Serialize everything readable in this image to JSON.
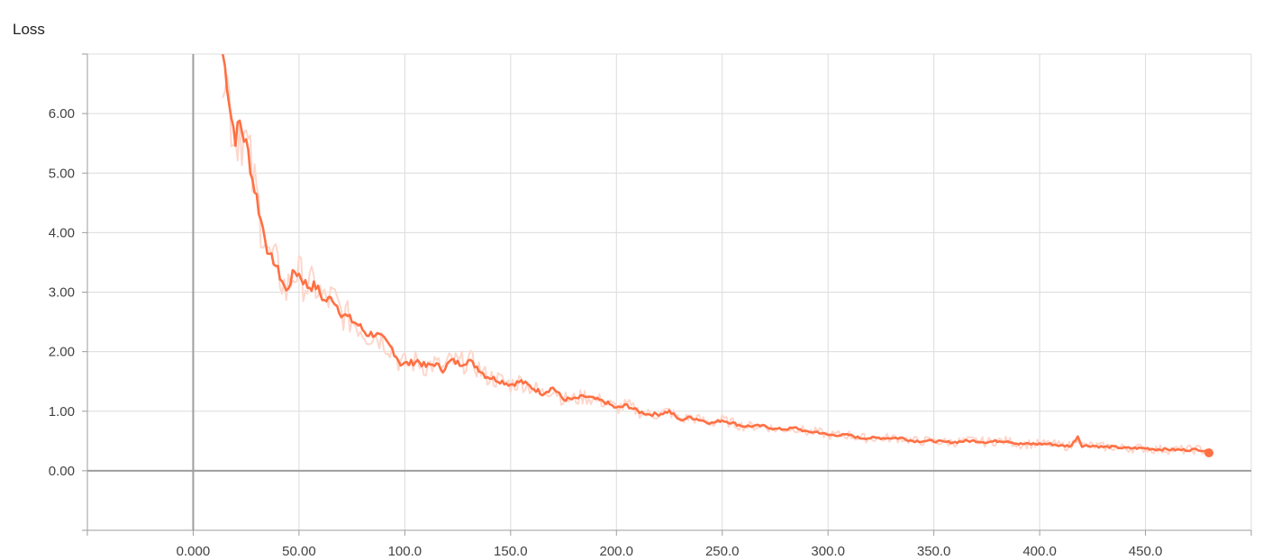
{
  "chart_data": {
    "type": "line",
    "title": "Loss",
    "xlabel": "",
    "ylabel": "",
    "xlim": [
      -50,
      500
    ],
    "ylim": [
      -1,
      7
    ],
    "grid": true,
    "x_ticks": [
      0,
      50,
      100,
      150,
      200,
      250,
      300,
      350,
      400,
      450
    ],
    "x_tick_labels": [
      "0.000",
      "50.00",
      "100.0",
      "150.0",
      "200.0",
      "250.0",
      "300.0",
      "350.0",
      "400.0",
      "450.0"
    ],
    "y_ticks": [
      0,
      1,
      2,
      3,
      4,
      5,
      6
    ],
    "y_tick_labels": [
      "0.00",
      "1.00",
      "2.00",
      "3.00",
      "4.00",
      "5.00",
      "6.00"
    ],
    "colors": {
      "smoothed": "#ff7043",
      "raw": "#fcd7cc",
      "grid": "#dcdcdc",
      "axis": "#9e9e9e"
    },
    "series": [
      {
        "x": [
          14,
          16,
          18,
          20,
          22,
          24,
          26,
          28,
          30,
          32,
          34,
          36,
          38,
          40,
          42,
          44,
          46,
          48,
          50,
          54,
          58,
          62,
          66,
          70,
          74,
          78,
          82,
          86,
          90,
          94,
          98,
          102,
          106,
          110,
          114,
          118,
          122,
          126,
          130,
          134,
          138,
          142,
          146,
          150,
          155,
          160,
          165,
          170,
          175,
          180,
          185,
          190,
          195,
          200,
          205,
          210,
          215,
          220,
          225,
          230,
          235,
          240,
          245,
          250,
          255,
          260,
          265,
          270,
          275,
          280,
          285,
          290,
          295,
          300,
          305,
          310,
          315,
          320,
          325,
          330,
          335,
          340,
          345,
          350,
          355,
          360,
          365,
          370,
          375,
          380,
          385,
          390,
          395,
          400,
          405,
          410,
          415,
          418,
          420,
          425,
          430,
          435,
          440,
          445,
          450,
          455,
          460,
          465,
          470,
          475,
          480
        ],
        "values": [
          7.0,
          6.55,
          5.95,
          5.6,
          5.85,
          5.6,
          5.35,
          4.9,
          4.6,
          4.2,
          3.95,
          3.55,
          3.55,
          3.35,
          3.2,
          3.0,
          3.2,
          3.35,
          3.3,
          3.1,
          3.1,
          2.85,
          2.9,
          2.65,
          2.55,
          2.45,
          2.3,
          2.3,
          2.2,
          2.05,
          1.8,
          1.8,
          1.85,
          1.75,
          1.8,
          1.7,
          1.85,
          1.8,
          1.85,
          1.75,
          1.6,
          1.55,
          1.5,
          1.45,
          1.5,
          1.4,
          1.3,
          1.4,
          1.2,
          1.2,
          1.25,
          1.2,
          1.15,
          1.05,
          1.1,
          1.0,
          0.95,
          0.95,
          1.0,
          0.85,
          0.9,
          0.85,
          0.8,
          0.85,
          0.8,
          0.75,
          0.75,
          0.75,
          0.7,
          0.7,
          0.72,
          0.65,
          0.65,
          0.6,
          0.6,
          0.6,
          0.55,
          0.55,
          0.55,
          0.55,
          0.55,
          0.5,
          0.5,
          0.5,
          0.48,
          0.48,
          0.5,
          0.5,
          0.48,
          0.5,
          0.5,
          0.45,
          0.45,
          0.45,
          0.45,
          0.42,
          0.42,
          0.58,
          0.42,
          0.42,
          0.4,
          0.4,
          0.38,
          0.38,
          0.38,
          0.36,
          0.36,
          0.35,
          0.35,
          0.36,
          0.32
        ]
      }
    ]
  }
}
